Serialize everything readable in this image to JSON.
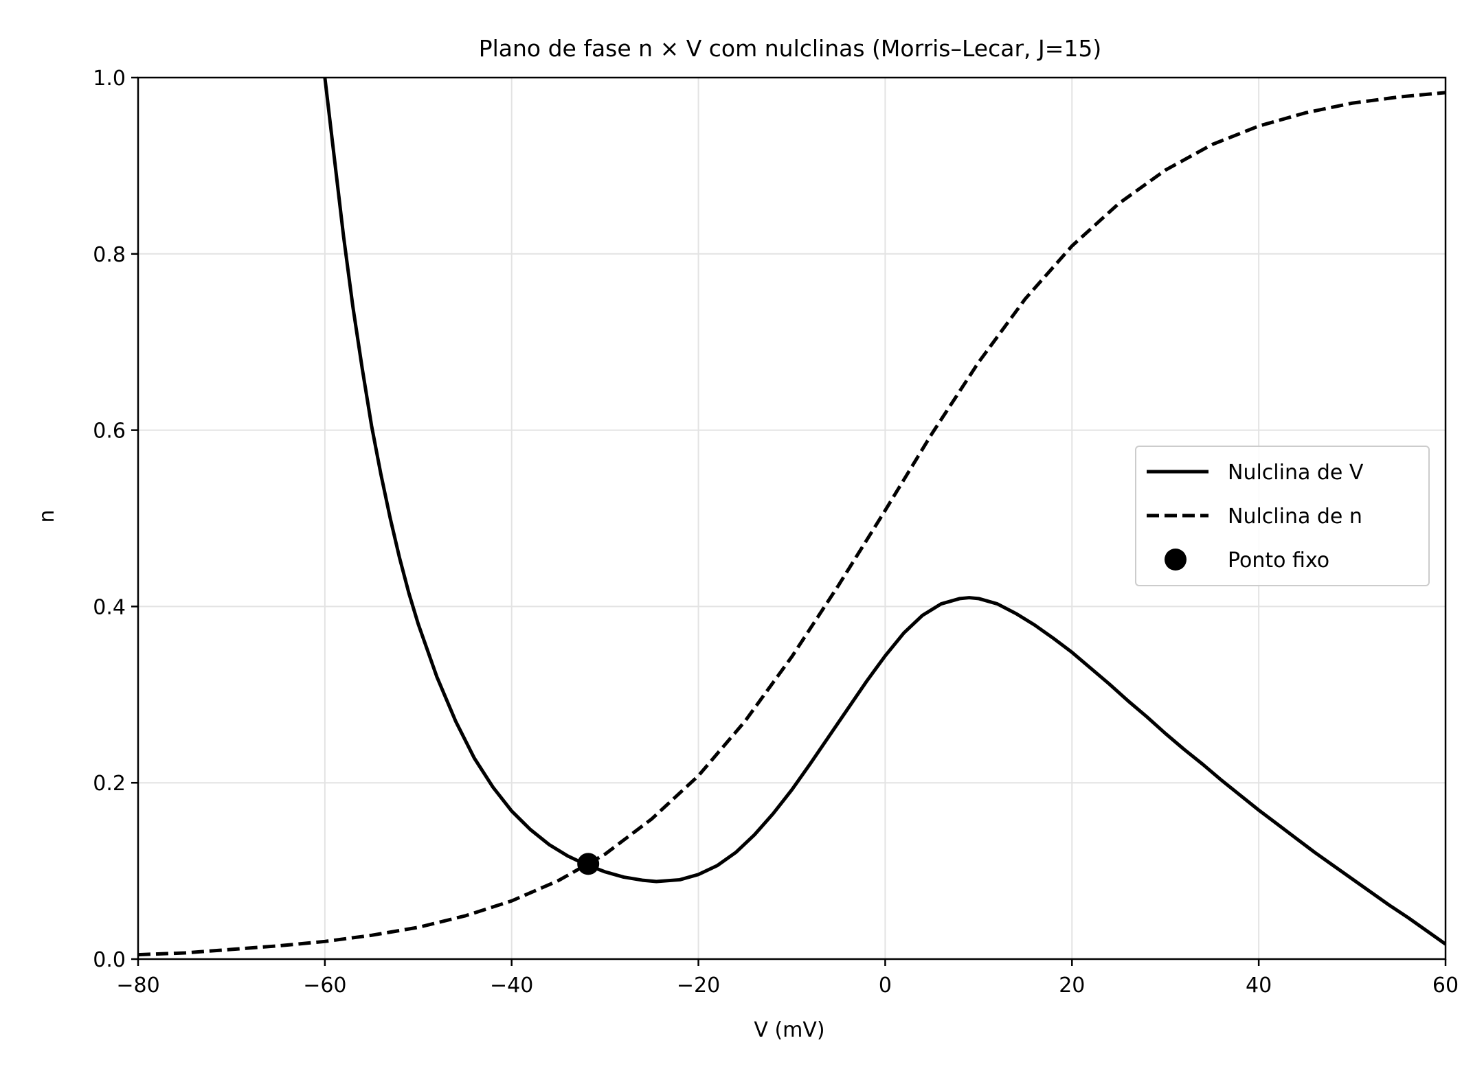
{
  "chart_data": {
    "type": "line",
    "title": "Plano de fase n × V com nulclinas (Morris–Lecar, J=15)",
    "xlabel": "V (mV)",
    "ylabel": "n",
    "xlim": [
      -80,
      60
    ],
    "ylim": [
      0.0,
      1.0
    ],
    "xticks": [
      -80,
      -60,
      -40,
      -20,
      0,
      20,
      40,
      60
    ],
    "xtick_labels": [
      "−80",
      "−60",
      "−40",
      "−20",
      "0",
      "20",
      "40",
      "60"
    ],
    "yticks": [
      0.0,
      0.2,
      0.4,
      0.6,
      0.8,
      1.0
    ],
    "ytick_labels": [
      "0.0",
      "0.2",
      "0.4",
      "0.6",
      "0.8",
      "1.0"
    ],
    "grid": true,
    "legend_position": "center-right",
    "series": [
      {
        "name": "Nulclina de V",
        "style": "solid",
        "color": "#000000",
        "x": [
          -60,
          -59,
          -58,
          -57,
          -56,
          -55,
          -54,
          -53,
          -52,
          -51,
          -50,
          -48,
          -46,
          -44,
          -42,
          -40,
          -38,
          -36,
          -34,
          -32,
          -30,
          -28,
          -26,
          -24.5,
          -22,
          -20,
          -18,
          -16,
          -14,
          -12,
          -10,
          -8,
          -6,
          -4,
          -2,
          0,
          2,
          4,
          6,
          8,
          9,
          10,
          12,
          14,
          16,
          18,
          20,
          22,
          24,
          26,
          28,
          30,
          32,
          34,
          36,
          38,
          40,
          42,
          44,
          46,
          48,
          50,
          52,
          54,
          56,
          58,
          60
        ],
        "y": [
          1.0,
          0.91,
          0.82,
          0.74,
          0.67,
          0.605,
          0.55,
          0.5,
          0.455,
          0.415,
          0.38,
          0.32,
          0.27,
          0.228,
          0.195,
          0.168,
          0.147,
          0.13,
          0.117,
          0.107,
          0.099,
          0.093,
          0.0895,
          0.088,
          0.09,
          0.096,
          0.106,
          0.121,
          0.141,
          0.165,
          0.192,
          0.222,
          0.253,
          0.284,
          0.315,
          0.344,
          0.37,
          0.39,
          0.403,
          0.409,
          0.41,
          0.409,
          0.403,
          0.392,
          0.379,
          0.364,
          0.348,
          0.33,
          0.312,
          0.293,
          0.275,
          0.256,
          0.238,
          0.221,
          0.203,
          0.186,
          0.169,
          0.153,
          0.137,
          0.121,
          0.106,
          0.091,
          0.076,
          0.061,
          0.047,
          0.032,
          0.017
        ]
      },
      {
        "name": "Nulclina de n",
        "style": "dashed",
        "color": "#000000",
        "x": [
          -80,
          -75,
          -70,
          -65,
          -60,
          -55,
          -50,
          -45,
          -40,
          -35,
          -30,
          -25,
          -20,
          -15,
          -10,
          -5,
          0,
          5,
          10,
          15,
          20,
          25,
          30,
          35,
          40,
          45,
          50,
          55,
          60
        ],
        "y": [
          0.005,
          0.007,
          0.011,
          0.015,
          0.02,
          0.027,
          0.036,
          0.049,
          0.066,
          0.089,
          0.119,
          0.159,
          0.208,
          0.27,
          0.343,
          0.424,
          0.509,
          0.596,
          0.677,
          0.749,
          0.809,
          0.857,
          0.895,
          0.924,
          0.945,
          0.96,
          0.971,
          0.978,
          0.983
        ]
      }
    ],
    "points": [
      {
        "name": "Ponto fixo",
        "x": -31.8,
        "y": 0.108,
        "color": "#000000"
      }
    ]
  }
}
